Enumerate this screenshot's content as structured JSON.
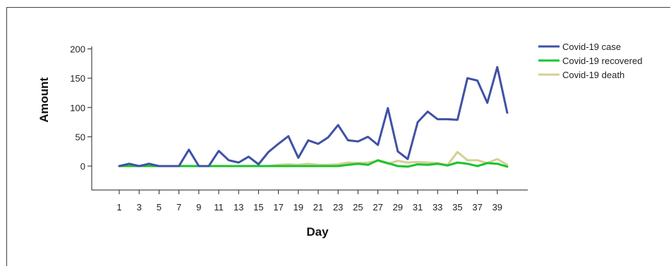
{
  "chart_data": {
    "type": "line",
    "title": "",
    "xlabel": "Day",
    "ylabel": "Amount",
    "x": [
      1,
      2,
      3,
      4,
      5,
      6,
      7,
      8,
      9,
      10,
      11,
      12,
      13,
      14,
      15,
      16,
      17,
      18,
      19,
      20,
      21,
      22,
      23,
      24,
      25,
      26,
      27,
      28,
      29,
      30,
      31,
      32,
      33,
      34,
      35,
      36,
      37,
      38,
      39,
      40
    ],
    "xticks": [
      1,
      3,
      5,
      7,
      9,
      11,
      13,
      15,
      17,
      19,
      21,
      23,
      25,
      27,
      29,
      31,
      33,
      35,
      37,
      39
    ],
    "yticks": [
      0,
      50,
      100,
      150,
      200
    ],
    "ylim": [
      -40,
      200
    ],
    "grid": false,
    "legend_position": "top-right",
    "series": [
      {
        "name": "Covid-19 case",
        "color": "#3f51a6",
        "values": [
          0,
          4,
          0,
          4,
          0,
          0,
          0,
          28,
          0,
          0,
          26,
          10,
          6,
          16,
          3,
          24,
          38,
          51,
          14,
          44,
          38,
          49,
          70,
          44,
          42,
          50,
          36,
          99,
          25,
          12,
          75,
          93,
          80,
          80,
          79,
          150,
          146,
          108,
          169,
          91
        ]
      },
      {
        "name": "Covid-19 recovered",
        "color": "#19c42a",
        "values": [
          0,
          0,
          0,
          0,
          0,
          0,
          0,
          0,
          0,
          0,
          0,
          0,
          0,
          0,
          0,
          0,
          0,
          0,
          0,
          0,
          0,
          0,
          0,
          2,
          4,
          2,
          10,
          5,
          0,
          -1,
          3,
          2,
          4,
          1,
          6,
          4,
          0,
          5,
          4,
          -1
        ]
      },
      {
        "name": "Covid-19 death",
        "color": "#d4cf96",
        "values": [
          0,
          0,
          0,
          0,
          0,
          0,
          0,
          0,
          0,
          0,
          0,
          0,
          0,
          0,
          0,
          0,
          2,
          3,
          2,
          4,
          2,
          2,
          3,
          6,
          5,
          6,
          9,
          4,
          9,
          6,
          7,
          6,
          5,
          2,
          24,
          10,
          10,
          5,
          12,
          2
        ]
      }
    ]
  }
}
